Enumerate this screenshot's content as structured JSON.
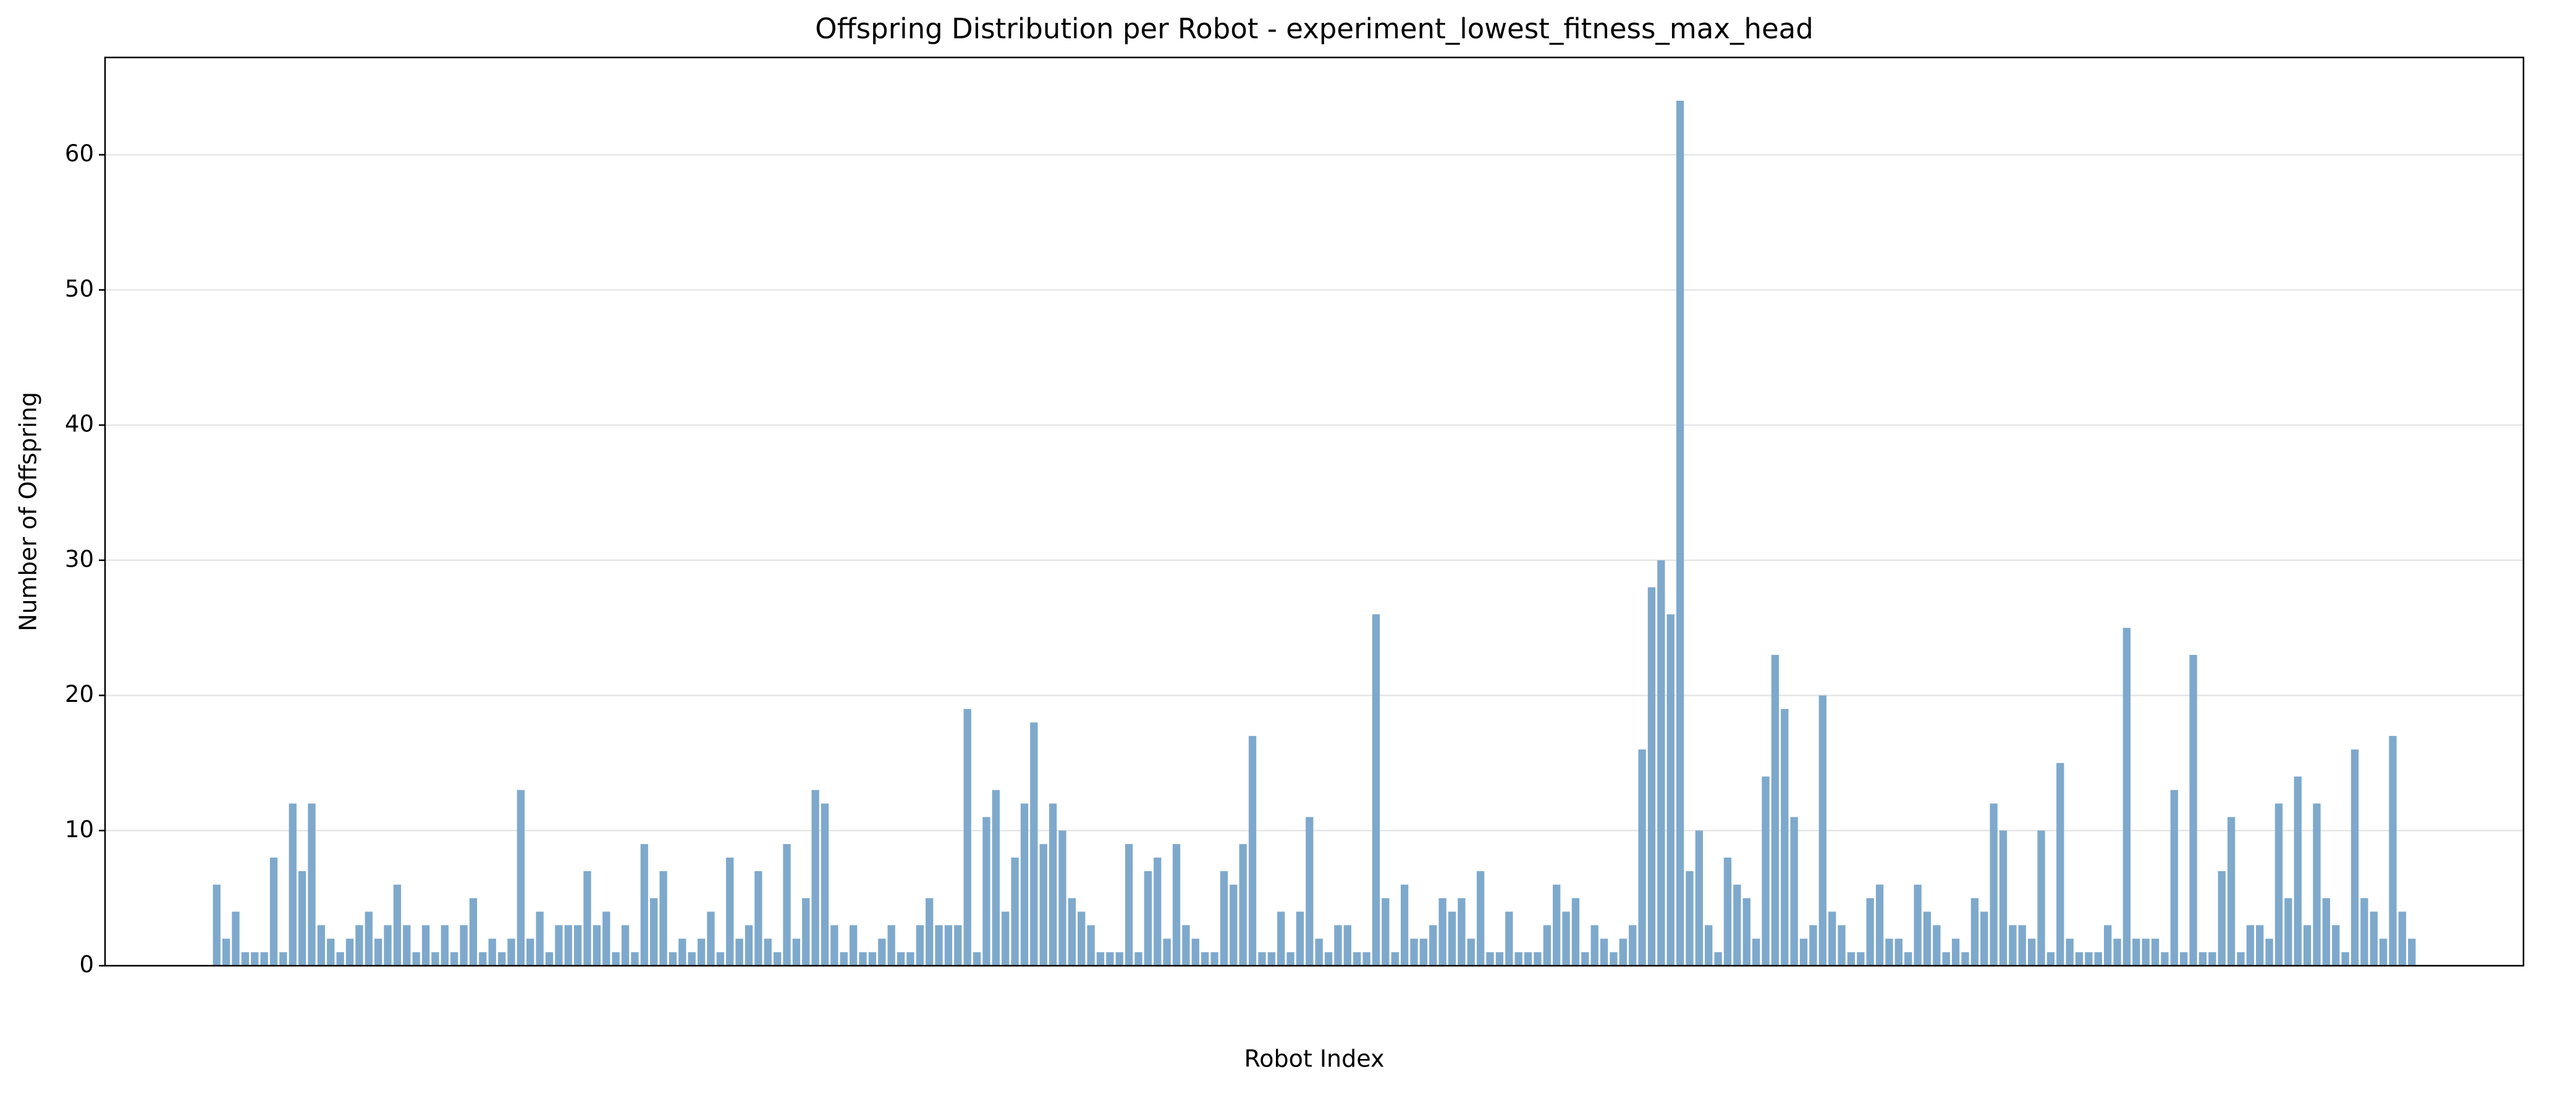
{
  "chart_data": {
    "type": "bar",
    "title": "Offspring Distribution per Robot - experiment_lowest_fitness_max_head",
    "x_label": "Robot Index",
    "y_label": "Number of Offspring",
    "color": "#7ea9cc",
    "grid": true,
    "ylim": [
      0,
      67.2
    ],
    "yticks": [
      0,
      10,
      20,
      30,
      40,
      50,
      60
    ],
    "categories": [
      null,
      null,
      null,
      null,
      null,
      null,
      null,
      null,
      null,
      null,
      null,
      null,
      null,
      null,
      null,
      null,
      null,
      null,
      null,
      null,
      null,
      null,
      null,
      null,
      null,
      null,
      null,
      null,
      null,
      null,
      null,
      null,
      null,
      null,
      null,
      null,
      null,
      null,
      null,
      null,
      null,
      null,
      null,
      null,
      null,
      null,
      null,
      null,
      null,
      null,
      null,
      null,
      null,
      null,
      null,
      null,
      null,
      null,
      null,
      null,
      null,
      null,
      null,
      null,
      null,
      null,
      null,
      null,
      null,
      null,
      null,
      null,
      null,
      null,
      null,
      null,
      null,
      null,
      null,
      null,
      null,
      null,
      null,
      null,
      null,
      null,
      null,
      null,
      null,
      null,
      null,
      null,
      null,
      null,
      null,
      null,
      null,
      null,
      null,
      null,
      null,
      null,
      null,
      null,
      null,
      null,
      null,
      null,
      null,
      null,
      null,
      null,
      null,
      null,
      null,
      null,
      null,
      null,
      null,
      null,
      null,
      null,
      null,
      null,
      null,
      null,
      null,
      null,
      null,
      null,
      null,
      null,
      null,
      null,
      null,
      null,
      null,
      null,
      null,
      null,
      null,
      null,
      null,
      null,
      null,
      null,
      null,
      null,
      null,
      null,
      null,
      null,
      null,
      null,
      null,
      null,
      null,
      null,
      null,
      null,
      null,
      null,
      null,
      null,
      null,
      null,
      null,
      null,
      null,
      null,
      null,
      null,
      null,
      null,
      null,
      null,
      null,
      null,
      null,
      null,
      null,
      null,
      null,
      null,
      null,
      null,
      null,
      null,
      null,
      null,
      null,
      null,
      null,
      null,
      null,
      null,
      null,
      null,
      null,
      null,
      null,
      null,
      null,
      null,
      null,
      null,
      null,
      null,
      null,
      null,
      null,
      null,
      null,
      null,
      null,
      null,
      null,
      null,
      null,
      null,
      null,
      null,
      null,
      null,
      null,
      null,
      null,
      null,
      null,
      null,
      null,
      null
    ],
    "values": [
      6,
      2,
      4,
      1,
      1,
      1,
      8,
      1,
      12,
      7,
      12,
      3,
      2,
      1,
      2,
      3,
      4,
      2,
      3,
      6,
      3,
      1,
      3,
      1,
      3,
      1,
      3,
      5,
      1,
      2,
      1,
      2,
      13,
      2,
      4,
      1,
      3,
      3,
      3,
      7,
      3,
      4,
      1,
      3,
      1,
      9,
      5,
      7,
      1,
      2,
      1,
      2,
      4,
      1,
      8,
      2,
      3,
      7,
      2,
      1,
      9,
      2,
      5,
      13,
      12,
      3,
      1,
      3,
      1,
      1,
      2,
      3,
      1,
      1,
      3,
      5,
      3,
      3,
      3,
      19,
      1,
      11,
      13,
      4,
      8,
      12,
      18,
      9,
      12,
      10,
      5,
      4,
      3,
      1,
      1,
      1,
      9,
      1,
      7,
      8,
      2,
      9,
      3,
      2,
      1,
      1,
      7,
      6,
      9,
      17,
      1,
      1,
      4,
      1,
      4,
      11,
      2,
      1,
      3,
      3,
      1,
      1,
      26,
      5,
      1,
      6,
      2,
      2,
      3,
      5,
      4,
      5,
      2,
      7,
      1,
      1,
      4,
      1,
      1,
      1,
      3,
      6,
      4,
      5,
      1,
      3,
      2,
      1,
      2,
      3,
      16,
      28,
      30,
      26,
      64,
      7,
      10,
      3,
      1,
      8,
      6,
      5,
      2,
      14,
      23,
      19,
      11,
      2,
      3,
      20,
      4,
      3,
      1,
      1,
      5,
      6,
      2,
      2,
      1,
      6,
      4,
      3,
      1,
      2,
      1,
      5,
      4,
      12,
      10,
      3,
      3,
      2,
      10,
      1,
      15,
      2,
      1,
      1,
      1,
      3,
      2,
      25,
      2,
      2,
      2,
      1,
      13,
      1,
      23,
      1,
      1,
      7,
      11,
      1,
      3,
      3,
      2,
      12,
      5,
      14,
      3,
      12,
      5,
      3,
      1,
      16,
      5,
      4,
      2,
      17,
      4,
      2
    ]
  }
}
